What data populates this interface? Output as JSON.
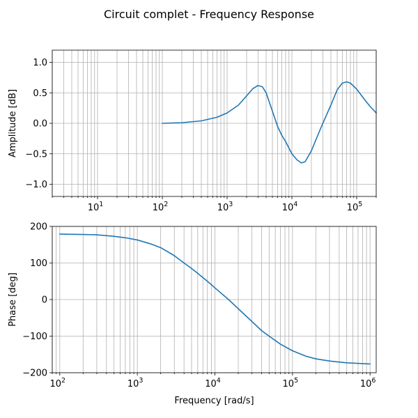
{
  "title": "Circuit complet -  Frequency Response",
  "chart_data": [
    {
      "type": "line",
      "xscale": "log",
      "xlim": [
        2.0,
        200000
      ],
      "ylim": [
        -1.2,
        1.2
      ],
      "xlabel": "",
      "ylabel": "Amplitude [dB]",
      "grid": "major-and-minor",
      "yticks": [
        {
          "v": 1.0,
          "label": "1.0"
        },
        {
          "v": 0.5,
          "label": "0.5"
        },
        {
          "v": 0.0,
          "label": "0.0"
        },
        {
          "v": -0.5,
          "label": "−0.5"
        },
        {
          "v": -1.0,
          "label": "−1.0"
        }
      ],
      "xticks": [
        {
          "v": 10,
          "base": "10",
          "exp": "1"
        },
        {
          "v": 100,
          "base": "10",
          "exp": "2"
        },
        {
          "v": 1000,
          "base": "10",
          "exp": "3"
        },
        {
          "v": 10000,
          "base": "10",
          "exp": "4"
        },
        {
          "v": 100000,
          "base": "10",
          "exp": "5"
        }
      ],
      "series": [
        {
          "color": "#1f77b4",
          "x": [
            100,
            200,
            400,
            700,
            1000,
            1500,
            2000,
            2500,
            3000,
            3500,
            4000,
            5000,
            6000,
            7000,
            8000,
            10000,
            12000,
            14000,
            16000,
            20000,
            25000,
            30000,
            40000,
            50000,
            60000,
            70000,
            80000,
            100000,
            130000,
            160000,
            200000
          ],
          "y": [
            0.0,
            0.01,
            0.04,
            0.1,
            0.17,
            0.3,
            0.45,
            0.57,
            0.62,
            0.6,
            0.5,
            0.2,
            -0.05,
            -0.2,
            -0.3,
            -0.5,
            -0.6,
            -0.65,
            -0.63,
            -0.45,
            -0.2,
            0.0,
            0.3,
            0.55,
            0.66,
            0.68,
            0.66,
            0.56,
            0.4,
            0.28,
            0.17
          ]
        }
      ]
    },
    {
      "type": "line",
      "xscale": "log",
      "xlim": [
        80,
        1200000
      ],
      "ylim": [
        -200,
        200
      ],
      "xlabel": "Frequency [rad/s]",
      "ylabel": "Phase [deg]",
      "grid": "major-and-minor",
      "yticks": [
        {
          "v": 200,
          "label": "200"
        },
        {
          "v": 100,
          "label": "100"
        },
        {
          "v": 0,
          "label": "0"
        },
        {
          "v": -100,
          "label": "−100"
        },
        {
          "v": -200,
          "label": "−200"
        }
      ],
      "xticks": [
        {
          "v": 100,
          "base": "10",
          "exp": "2"
        },
        {
          "v": 1000,
          "base": "10",
          "exp": "3"
        },
        {
          "v": 10000,
          "base": "10",
          "exp": "4"
        },
        {
          "v": 100000,
          "base": "10",
          "exp": "5"
        },
        {
          "v": 1000000,
          "base": "10",
          "exp": "6"
        }
      ],
      "series": [
        {
          "color": "#1f77b4",
          "x": [
            100,
            200,
            300,
            500,
            700,
            1000,
            1500,
            2000,
            3000,
            4000,
            5000,
            6000,
            8000,
            10000,
            15000,
            20000,
            30000,
            40000,
            50000,
            70000,
            100000,
            150000,
            200000,
            300000,
            500000,
            1000000
          ],
          "y": [
            179,
            178,
            177,
            173,
            169,
            163,
            152,
            142,
            120,
            100,
            85,
            72,
            50,
            32,
            0,
            -25,
            -60,
            -85,
            -100,
            -122,
            -140,
            -155,
            -162,
            -168,
            -173,
            -176
          ]
        }
      ]
    }
  ]
}
